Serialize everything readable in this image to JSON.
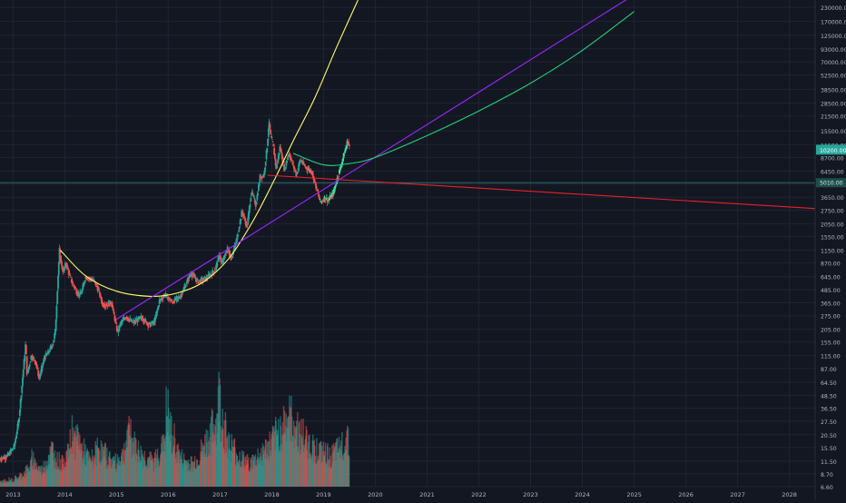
{
  "chart_data": {
    "type": "line",
    "title": "",
    "xlabel": "",
    "ylabel": "",
    "y_scale": "log",
    "ylim": [
      6.6,
      270000
    ],
    "x_range": [
      "2012-10-01",
      "2028-07-01"
    ],
    "grid": true,
    "legend": "none",
    "x_ticks": [
      "2013",
      "2014",
      "2015",
      "2016",
      "2017",
      "2018",
      "2019",
      "2020",
      "2021",
      "2022",
      "2023",
      "2024",
      "2025",
      "2026",
      "2027",
      "2028"
    ],
    "y_ticks": [
      "230000.00",
      "170000.00",
      "125000.00",
      "93000.00",
      "70000.00",
      "52500.00",
      "38500.00",
      "28500.00",
      "21500.00",
      "15500.00",
      "11500.00",
      "8700.00",
      "6450.00",
      "4850.00",
      "3650.00",
      "2750.00",
      "2050.00",
      "1550.00",
      "1150.00",
      "870.00",
      "645.00",
      "485.00",
      "365.00",
      "275.00",
      "205.00",
      "155.00",
      "115.00",
      "87.00",
      "64.50",
      "48.50",
      "36.50",
      "27.50",
      "20.50",
      "15.50",
      "11.50",
      "8.70",
      "6.60"
    ],
    "price_labels": {
      "upper": "10200.00",
      "lower": "5010.00"
    },
    "colors": {
      "background": "#131722",
      "grid": "#1f2433",
      "candle_up": "#26a69a",
      "candle_down": "#ef5350",
      "highlight": "#3ce0a3",
      "yellow_curve": "#ffff66",
      "purple_line": "#9c27ff",
      "green_curve": "#22d07a",
      "red_line": "#e8212b",
      "hline": "#2a6b6b",
      "axis_text": "#b2b5be"
    },
    "series": [
      {
        "type": "price",
        "points": [
          [
            "2012-10-01",
            12
          ],
          [
            "2012-12-01",
            13
          ],
          [
            "2013-01-15",
            16
          ],
          [
            "2013-02-15",
            28
          ],
          [
            "2013-03-10",
            60
          ],
          [
            "2013-04-05",
            150
          ],
          [
            "2013-04-15",
            75
          ],
          [
            "2013-05-15",
            115
          ],
          [
            "2013-06-15",
            100
          ],
          [
            "2013-07-10",
            70
          ],
          [
            "2013-08-15",
            110
          ],
          [
            "2013-09-15",
            125
          ],
          [
            "2013-10-15",
            150
          ],
          [
            "2013-11-01",
            200
          ],
          [
            "2013-11-18",
            600
          ],
          [
            "2013-11-30",
            1150
          ],
          [
            "2013-12-15",
            800
          ],
          [
            "2013-12-28",
            720
          ],
          [
            "2014-01-15",
            870
          ],
          [
            "2014-02-10",
            650
          ],
          [
            "2014-03-01",
            560
          ],
          [
            "2014-04-10",
            440
          ],
          [
            "2014-05-01",
            440
          ],
          [
            "2014-06-01",
            640
          ],
          [
            "2014-07-01",
            620
          ],
          [
            "2014-08-01",
            590
          ],
          [
            "2014-09-01",
            480
          ],
          [
            "2014-10-01",
            350
          ],
          [
            "2014-11-01",
            350
          ],
          [
            "2014-12-01",
            370
          ],
          [
            "2015-01-14",
            190
          ],
          [
            "2015-02-01",
            230
          ],
          [
            "2015-03-15",
            270
          ],
          [
            "2015-05-01",
            235
          ],
          [
            "2015-07-01",
            265
          ],
          [
            "2015-08-25",
            225
          ],
          [
            "2015-10-01",
            240
          ],
          [
            "2015-11-05",
            380
          ],
          [
            "2015-12-15",
            440
          ],
          [
            "2016-02-01",
            370
          ],
          [
            "2016-04-01",
            420
          ],
          [
            "2016-06-15",
            700
          ],
          [
            "2016-08-01",
            580
          ],
          [
            "2016-10-01",
            620
          ],
          [
            "2016-12-01",
            750
          ],
          [
            "2017-01-05",
            1050
          ],
          [
            "2017-01-15",
            830
          ],
          [
            "2017-03-01",
            1200
          ],
          [
            "2017-03-25",
            960
          ],
          [
            "2017-05-01",
            1400
          ],
          [
            "2017-06-10",
            2700
          ],
          [
            "2017-07-15",
            1900
          ],
          [
            "2017-08-15",
            4200
          ],
          [
            "2017-09-15",
            3100
          ],
          [
            "2017-10-15",
            5700
          ],
          [
            "2017-11-12",
            5900
          ],
          [
            "2017-12-05",
            11500
          ],
          [
            "2017-12-17",
            19000
          ],
          [
            "2017-12-30",
            13500
          ],
          [
            "2018-01-15",
            11500
          ],
          [
            "2018-02-06",
            6800
          ],
          [
            "2018-03-05",
            11000
          ],
          [
            "2018-04-06",
            6600
          ],
          [
            "2018-05-05",
            9700
          ],
          [
            "2018-06-29",
            5900
          ],
          [
            "2018-07-25",
            8300
          ],
          [
            "2018-09-01",
            7000
          ],
          [
            "2018-10-15",
            6400
          ],
          [
            "2018-11-20",
            4300
          ],
          [
            "2018-12-15",
            3250
          ],
          [
            "2019-01-15",
            3600
          ],
          [
            "2019-02-08",
            3400
          ],
          [
            "2019-03-15",
            3950
          ],
          [
            "2019-04-05",
            5000
          ],
          [
            "2019-05-15",
            7800
          ],
          [
            "2019-06-26",
            12500
          ],
          [
            "2019-07-05",
            11000
          ]
        ]
      },
      {
        "type": "volume",
        "points_ref": "volume"
      }
    ],
    "volume": {
      "range": [
        "2012-10-01",
        "2019-07-05"
      ],
      "relative_values": [
        0.05,
        0.06,
        0.05,
        0.08,
        0.07,
        0.09,
        0.1,
        0.12,
        0.15,
        0.18,
        0.22,
        0.3,
        0.25,
        0.2,
        0.18,
        0.22,
        0.28,
        0.35,
        0.4,
        0.32,
        0.28,
        0.25,
        0.3,
        0.34,
        0.45,
        0.6,
        0.48,
        0.55,
        0.4,
        0.38,
        0.32,
        0.28,
        0.3,
        0.36,
        0.42,
        0.38,
        0.35,
        0.32,
        0.3,
        0.28,
        0.26,
        0.3,
        0.33,
        0.4,
        0.5,
        0.62,
        0.48,
        0.44,
        0.38,
        0.35,
        0.32,
        0.3,
        0.28,
        0.27,
        0.3,
        0.35,
        0.42,
        0.55,
        0.8,
        0.6,
        0.5,
        0.42,
        0.36,
        0.3,
        0.28,
        0.26,
        0.25,
        0.24,
        0.28,
        0.32,
        0.38,
        0.45,
        0.5,
        0.55,
        0.62,
        0.7,
        0.95,
        0.75,
        0.6,
        0.5,
        0.44,
        0.4,
        0.36,
        0.32,
        0.3,
        0.28,
        0.26,
        0.25,
        0.27,
        0.3,
        0.33,
        0.36,
        0.4,
        0.42,
        0.45,
        0.5,
        0.55,
        0.6,
        0.65,
        0.7,
        0.75,
        0.72,
        0.68,
        0.62,
        0.58,
        0.55,
        0.5,
        0.48,
        0.45,
        0.42,
        0.4,
        0.38,
        0.36,
        0.35,
        0.34,
        0.33,
        0.35,
        0.38,
        0.4,
        0.45,
        0.5,
        0.55
      ]
    },
    "overlays": [
      {
        "name": "",
        "type": "curve",
        "color_key": "yellow_curve",
        "points": [
          [
            "2013-11-30",
            1150
          ],
          [
            "2014-06-01",
            650
          ],
          [
            "2015-01-01",
            470
          ],
          [
            "2015-09-01",
            420
          ],
          [
            "2016-03-01",
            450
          ],
          [
            "2016-09-01",
            570
          ],
          [
            "2017-03-01",
            950
          ],
          [
            "2017-08-15",
            2100
          ],
          [
            "2018-01-15",
            5200
          ],
          [
            "2018-06-01",
            12500
          ],
          [
            "2018-11-01",
            32000
          ],
          [
            "2019-04-01",
            95000
          ],
          [
            "2019-09-01",
            270000
          ]
        ]
      },
      {
        "name": "",
        "type": "line",
        "color_key": "purple_line",
        "points": [
          [
            "2015-01-01",
            255
          ],
          [
            "2028-07-01",
            3600000
          ]
        ]
      },
      {
        "name": "",
        "type": "curve",
        "color_key": "green_curve",
        "points": [
          [
            "2018-06-01",
            9500
          ],
          [
            "2019-01-01",
            7400
          ],
          [
            "2019-07-01",
            7600
          ],
          [
            "2020-01-01",
            8700
          ],
          [
            "2021-01-01",
            14000
          ],
          [
            "2022-01-01",
            24000
          ],
          [
            "2023-01-01",
            44000
          ],
          [
            "2024-01-01",
            90000
          ],
          [
            "2025-01-01",
            210000
          ]
        ]
      },
      {
        "name": "",
        "type": "line",
        "color_key": "red_line",
        "points": [
          [
            "2017-12-01",
            5900
          ],
          [
            "2028-07-01",
            2850
          ]
        ]
      }
    ],
    "hline_value": 5010
  }
}
